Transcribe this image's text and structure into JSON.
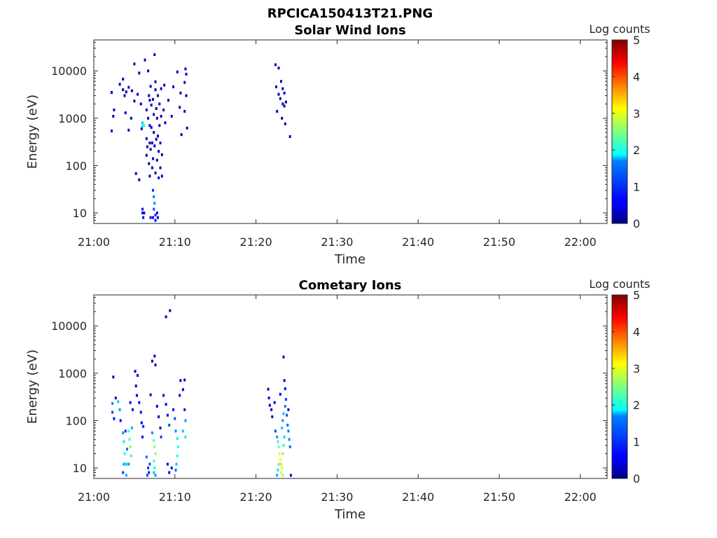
{
  "figure_title": "RPCICA150413T21.PNG",
  "colormap": [
    "#00007f",
    "#0000ff",
    "#007fff",
    "#00ffff",
    "#7fff7f",
    "#ffff00",
    "#ff7f00",
    "#ff0000",
    "#7f0000"
  ],
  "chart_data": [
    {
      "type": "heatmap",
      "title": "Solar Wind Ions",
      "xlabel": "Time",
      "ylabel": "Energy (eV)",
      "x_ticks": [
        "21:00",
        "21:10",
        "21:20",
        "21:30",
        "21:40",
        "21:50",
        "22:00"
      ],
      "x_tick_minutes": [
        0,
        10,
        20,
        30,
        40,
        50,
        60
      ],
      "xlim_minutes": [
        0,
        63.3
      ],
      "y_scale": "log",
      "ylim": [
        6,
        45000
      ],
      "y_ticks": [
        "10",
        "100",
        "1000",
        "10000"
      ],
      "y_tick_values": [
        10,
        100,
        1000,
        10000
      ],
      "colorbar": {
        "label": "Log counts",
        "ticks": [
          "0",
          "1",
          "2",
          "3",
          "4",
          "5"
        ],
        "range": [
          0,
          5
        ]
      },
      "points": [
        [
          2.2,
          3500,
          0.3
        ],
        [
          2.2,
          540,
          0.3
        ],
        [
          2.4,
          1100,
          0.3
        ],
        [
          2.5,
          1500,
          0.3
        ],
        [
          3.2,
          5200,
          0.3
        ],
        [
          3.6,
          4000,
          0.3
        ],
        [
          3.6,
          6700,
          0.3
        ],
        [
          3.8,
          3000,
          0.3
        ],
        [
          3.9,
          1300,
          0.3
        ],
        [
          4.0,
          3600,
          0.3
        ],
        [
          4.3,
          4500,
          0.3
        ],
        [
          4.3,
          560,
          0.3
        ],
        [
          4.6,
          1000,
          0.3
        ],
        [
          4.7,
          3800,
          0.3
        ],
        [
          5.0,
          14000,
          0.3
        ],
        [
          5.0,
          2300,
          0.3
        ],
        [
          5.4,
          3200,
          0.3
        ],
        [
          5.2,
          68,
          0.3
        ],
        [
          5.6,
          50,
          0.3
        ],
        [
          5.6,
          9000,
          0.3
        ],
        [
          5.8,
          2000,
          0.3
        ],
        [
          5.9,
          600,
          0.3
        ],
        [
          6.0,
          800,
          1.6
        ],
        [
          6.0,
          680,
          1.8
        ],
        [
          6.2,
          700,
          2.0
        ],
        [
          6.0,
          10,
          0.5
        ],
        [
          6.0,
          12,
          0.5
        ],
        [
          6.1,
          8,
          0.5
        ],
        [
          6.2,
          10,
          0.5
        ],
        [
          6.3,
          17000,
          0.3
        ],
        [
          6.5,
          1500,
          0.3
        ],
        [
          6.5,
          370,
          0.3
        ],
        [
          6.5,
          165,
          0.3
        ],
        [
          6.6,
          250,
          0.3
        ],
        [
          6.7,
          1000,
          0.3
        ],
        [
          6.7,
          10000,
          0.3
        ],
        [
          6.8,
          3000,
          0.3
        ],
        [
          6.8,
          110,
          0.3
        ],
        [
          6.9,
          2400,
          0.3
        ],
        [
          6.9,
          700,
          0.3
        ],
        [
          6.9,
          300,
          0.3
        ],
        [
          6.9,
          60,
          0.3
        ],
        [
          7.0,
          4700,
          0.3
        ],
        [
          7.0,
          220,
          0.3
        ],
        [
          7.1,
          1900,
          0.3
        ],
        [
          7.1,
          640,
          0.3
        ],
        [
          7.2,
          300,
          0.3
        ],
        [
          7.2,
          90,
          0.3
        ],
        [
          7.3,
          140,
          0.3
        ],
        [
          7.3,
          2500,
          0.3
        ],
        [
          7.4,
          1200,
          0.3
        ],
        [
          7.4,
          500,
          0.3
        ],
        [
          7.5,
          22000,
          0.3
        ],
        [
          7.5,
          260,
          0.3
        ],
        [
          7.6,
          4000,
          0.3
        ],
        [
          7.6,
          70,
          0.3
        ],
        [
          7.6,
          5900,
          0.3
        ],
        [
          7.7,
          1600,
          0.3
        ],
        [
          7.7,
          360,
          0.3
        ],
        [
          7.8,
          130,
          0.3
        ],
        [
          7.8,
          1000,
          0.3
        ],
        [
          7.9,
          3000,
          0.3
        ],
        [
          7.9,
          420,
          0.3
        ],
        [
          8.0,
          200,
          0.3
        ],
        [
          8.0,
          55,
          0.3
        ],
        [
          8.1,
          2000,
          0.3
        ],
        [
          8.1,
          700,
          0.3
        ],
        [
          8.2,
          300,
          0.3
        ],
        [
          8.2,
          90,
          0.3
        ],
        [
          8.3,
          4200,
          0.3
        ],
        [
          8.3,
          1100,
          0.3
        ],
        [
          8.4,
          170,
          0.3
        ],
        [
          8.4,
          60,
          0.3
        ],
        [
          7.3,
          30,
          0.9
        ],
        [
          7.4,
          22,
          1.2
        ],
        [
          7.5,
          16,
          1.3
        ],
        [
          7.4,
          12,
          1.0
        ],
        [
          7.6,
          9,
          0.8
        ],
        [
          7.3,
          8,
          0.7
        ],
        [
          7.6,
          7,
          0.6
        ],
        [
          7.0,
          8,
          0.5
        ],
        [
          7.8,
          10,
          0.6
        ],
        [
          7.9,
          8,
          0.5
        ],
        [
          8.6,
          1500,
          0.3
        ],
        [
          8.8,
          800,
          0.3
        ],
        [
          8.7,
          5000,
          0.3
        ],
        [
          9.2,
          2400,
          0.3
        ],
        [
          9.6,
          1100,
          0.3
        ],
        [
          9.8,
          4600,
          0.3
        ],
        [
          10.3,
          9500,
          0.3
        ],
        [
          10.6,
          1700,
          0.3
        ],
        [
          10.7,
          3400,
          0.3
        ],
        [
          10.8,
          450,
          0.3
        ],
        [
          11.2,
          1400,
          0.3
        ],
        [
          11.2,
          5700,
          0.3
        ],
        [
          11.4,
          3000,
          0.3
        ],
        [
          11.4,
          8500,
          0.3
        ],
        [
          11.5,
          620,
          0.3
        ],
        [
          11.3,
          11000,
          0.3
        ],
        [
          22.4,
          13500,
          0.3
        ],
        [
          22.8,
          11500,
          0.3
        ],
        [
          22.5,
          4600,
          0.3
        ],
        [
          22.6,
          1400,
          0.3
        ],
        [
          22.8,
          3200,
          0.3
        ],
        [
          23.0,
          2600,
          0.3
        ],
        [
          23.1,
          6000,
          0.3
        ],
        [
          23.2,
          1000,
          0.3
        ],
        [
          23.3,
          4200,
          0.3
        ],
        [
          23.3,
          2000,
          0.3
        ],
        [
          23.5,
          1800,
          0.3
        ],
        [
          23.6,
          760,
          0.3
        ],
        [
          23.7,
          2200,
          0.3
        ],
        [
          23.5,
          3400,
          0.3
        ],
        [
          24.2,
          410,
          0.3
        ]
      ]
    },
    {
      "type": "heatmap",
      "title": "Cometary Ions",
      "xlabel": "Time",
      "ylabel": "Energy (eV)",
      "x_ticks": [
        "21:00",
        "21:10",
        "21:20",
        "21:30",
        "21:40",
        "21:50",
        "22:00"
      ],
      "x_tick_minutes": [
        0,
        10,
        20,
        30,
        40,
        50,
        60
      ],
      "xlim_minutes": [
        0,
        63.3
      ],
      "y_scale": "log",
      "ylim": [
        6,
        45000
      ],
      "y_ticks": [
        "10",
        "100",
        "1000",
        "10000"
      ],
      "y_tick_values": [
        10,
        100,
        1000,
        10000
      ],
      "colorbar": {
        "label": "Log counts",
        "ticks": [
          "0",
          "1",
          "2",
          "3",
          "4",
          "5"
        ],
        "range": [
          0,
          5
        ]
      },
      "points": [
        [
          2.3,
          230,
          1.3
        ],
        [
          2.3,
          150,
          1.0
        ],
        [
          2.5,
          110,
          0.7
        ],
        [
          2.4,
          830,
          0.3
        ],
        [
          2.7,
          300,
          0.5
        ],
        [
          3.0,
          250,
          1.6
        ],
        [
          3.2,
          170,
          1.4
        ],
        [
          3.3,
          100,
          0.6
        ],
        [
          3.6,
          55,
          1.4
        ],
        [
          3.7,
          36,
          1.8
        ],
        [
          3.8,
          20,
          2.0
        ],
        [
          3.7,
          12,
          1.4
        ],
        [
          3.6,
          8,
          0.9
        ],
        [
          3.9,
          60,
          0.8
        ],
        [
          4.0,
          12,
          1.6
        ],
        [
          4.0,
          7,
          1.5
        ],
        [
          4.1,
          25,
          1.2
        ],
        [
          4.3,
          60,
          2.1
        ],
        [
          4.4,
          40,
          2.2
        ],
        [
          4.5,
          28,
          2.5
        ],
        [
          4.6,
          18,
          2.2
        ],
        [
          4.3,
          12,
          1.4
        ],
        [
          4.7,
          70,
          1.5
        ],
        [
          4.5,
          240,
          0.6
        ],
        [
          4.8,
          170,
          0.5
        ],
        [
          5.1,
          1100,
          0.3
        ],
        [
          5.2,
          540,
          0.3
        ],
        [
          5.4,
          900,
          0.3
        ],
        [
          5.3,
          340,
          0.3
        ],
        [
          5.6,
          240,
          0.6
        ],
        [
          5.8,
          150,
          0.5
        ],
        [
          5.9,
          90,
          0.4
        ],
        [
          6.1,
          75,
          0.8
        ],
        [
          6.0,
          45,
          0.5
        ],
        [
          6.5,
          17,
          1.2
        ],
        [
          6.7,
          10,
          0.9
        ],
        [
          6.8,
          8,
          0.8
        ],
        [
          6.6,
          7,
          1.0
        ],
        [
          6.9,
          12,
          1.0
        ],
        [
          7.0,
          350,
          0.4
        ],
        [
          7.2,
          1800,
          0.3
        ],
        [
          7.5,
          2300,
          0.3
        ],
        [
          7.6,
          1500,
          0.3
        ],
        [
          7.2,
          55,
          1.3
        ],
        [
          7.4,
          38,
          2.3
        ],
        [
          7.5,
          28,
          2.6
        ],
        [
          7.6,
          20,
          2.6
        ],
        [
          7.4,
          14,
          2.3
        ],
        [
          7.5,
          10,
          2.0
        ],
        [
          7.4,
          8,
          1.6
        ],
        [
          7.6,
          7,
          1.4
        ],
        [
          7.8,
          200,
          0.5
        ],
        [
          8.0,
          120,
          0.4
        ],
        [
          8.2,
          70,
          0.5
        ],
        [
          8.3,
          45,
          0.9
        ],
        [
          8.6,
          340,
          0.5
        ],
        [
          8.9,
          220,
          0.5
        ],
        [
          9.1,
          130,
          0.6
        ],
        [
          9.3,
          80,
          1.0
        ],
        [
          9.1,
          12,
          0.6
        ],
        [
          9.3,
          8,
          0.6
        ],
        [
          9.6,
          10,
          0.6
        ],
        [
          9.8,
          170,
          0.6
        ],
        [
          10.0,
          110,
          1.0
        ],
        [
          10.1,
          60,
          1.3
        ],
        [
          10.3,
          42,
          1.8
        ],
        [
          10.4,
          28,
          2.0
        ],
        [
          10.3,
          18,
          2.0
        ],
        [
          10.2,
          12,
          1.6
        ],
        [
          10.1,
          9,
          1.2
        ],
        [
          10.6,
          340,
          0.6
        ],
        [
          10.7,
          700,
          0.3
        ],
        [
          11.0,
          450,
          0.4
        ],
        [
          11.2,
          170,
          0.7
        ],
        [
          11.3,
          100,
          1.4
        ],
        [
          11.0,
          60,
          1.6
        ],
        [
          11.3,
          45,
          1.8
        ],
        [
          11.2,
          720,
          0.3
        ],
        [
          8.9,
          15500,
          0.3
        ],
        [
          9.4,
          21000,
          0.3
        ],
        [
          21.5,
          460,
          0.4
        ],
        [
          21.6,
          300,
          0.6
        ],
        [
          21.7,
          210,
          0.5
        ],
        [
          21.9,
          170,
          0.4
        ],
        [
          22.0,
          120,
          0.4
        ],
        [
          22.3,
          240,
          0.3
        ],
        [
          22.4,
          60,
          1.0
        ],
        [
          22.6,
          45,
          1.4
        ],
        [
          22.7,
          36,
          2.0
        ],
        [
          22.8,
          28,
          2.5
        ],
        [
          22.9,
          20,
          3.0
        ],
        [
          23.0,
          15,
          3.2
        ],
        [
          23.1,
          12,
          3.3
        ],
        [
          23.2,
          10,
          3.2
        ],
        [
          23.1,
          8,
          3.0
        ],
        [
          23.3,
          7,
          2.6
        ],
        [
          22.8,
          12,
          2.2
        ],
        [
          22.7,
          9,
          1.8
        ],
        [
          22.6,
          7,
          1.5
        ],
        [
          23.3,
          20,
          2.5
        ],
        [
          23.4,
          30,
          2.0
        ],
        [
          23.5,
          45,
          1.7
        ],
        [
          23.2,
          70,
          1.6
        ],
        [
          23.3,
          100,
          1.4
        ],
        [
          23.4,
          140,
          1.6
        ],
        [
          23.6,
          200,
          1.2
        ],
        [
          23.7,
          280,
          0.9
        ],
        [
          23.8,
          130,
          1.0
        ],
        [
          23.9,
          80,
          1.1
        ],
        [
          24.0,
          60,
          1.2
        ],
        [
          24.1,
          40,
          1.3
        ],
        [
          24.2,
          28,
          1.1
        ],
        [
          23.0,
          360,
          0.5
        ],
        [
          23.5,
          700,
          0.3
        ],
        [
          23.6,
          470,
          0.4
        ],
        [
          23.4,
          2200,
          0.3
        ],
        [
          24.3,
          7,
          0.5
        ],
        [
          24.0,
          170,
          0.6
        ]
      ]
    }
  ]
}
